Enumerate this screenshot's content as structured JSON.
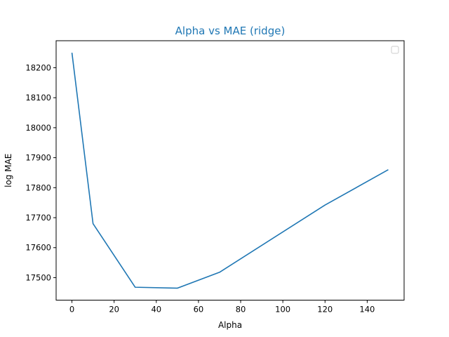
{
  "chart_data": {
    "type": "line",
    "title": "Alpha vs MAE (ridge)",
    "xlabel": "Alpha",
    "ylabel": "log MAE",
    "xlim": [
      -7.5,
      157.5
    ],
    "ylim": [
      17425,
      18290
    ],
    "xticks": [
      0,
      20,
      40,
      60,
      80,
      100,
      120,
      140
    ],
    "yticks": [
      17500,
      17600,
      17700,
      17800,
      17900,
      18000,
      18100,
      18200
    ],
    "grid": false,
    "legend": "top-right (empty)",
    "series": [
      {
        "color": "#1f77b4",
        "x": [
          0,
          10,
          30,
          50,
          70,
          120,
          150
        ],
        "y": [
          18250,
          17680,
          17468,
          17465,
          17518,
          17742,
          17860
        ]
      }
    ]
  }
}
